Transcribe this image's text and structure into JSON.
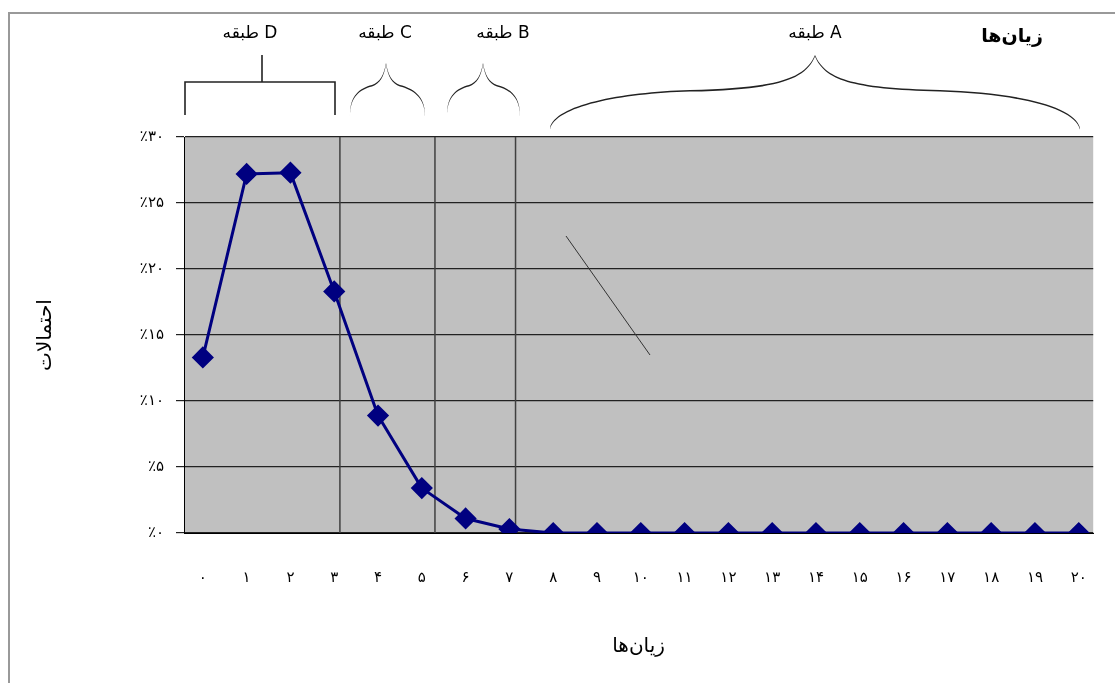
{
  "chart_data": {
    "type": "line",
    "title": "زیان‌ها",
    "xlabel": "زیان‌ها",
    "ylabel": "احتمالات",
    "annotations": [
      "طبقه D",
      "طبقه C",
      "طبقه B",
      "طبقه A"
    ],
    "x": [
      0,
      1,
      2,
      3,
      4,
      5,
      6,
      7,
      8,
      9,
      10,
      11,
      12,
      13,
      14,
      15,
      16,
      17,
      18,
      19,
      20
    ],
    "series": [
      {
        "color": "#000080",
        "values": [
          13.3,
          27.2,
          27.3,
          18.3,
          8.9,
          3.4,
          1.1,
          0.3,
          0,
          0,
          0,
          0,
          0,
          0,
          0,
          0,
          0,
          0,
          0,
          0,
          0
        ]
      }
    ],
    "xlim": [
      -0.43,
      20.33
    ],
    "xticks": [
      {
        "value": 0,
        "label": "۰"
      },
      {
        "value": 1,
        "label": "۱"
      },
      {
        "value": 2,
        "label": "۲"
      },
      {
        "value": 3,
        "label": "۳"
      },
      {
        "value": 4,
        "label": "۴"
      },
      {
        "value": 5,
        "label": "۵"
      },
      {
        "value": 6,
        "label": "۶"
      },
      {
        "value": 7,
        "label": "۷"
      },
      {
        "value": 8,
        "label": "۸"
      },
      {
        "value": 9,
        "label": "۹"
      },
      {
        "value": 10,
        "label": "۱۰"
      },
      {
        "value": 11,
        "label": "۱۱"
      },
      {
        "value": 12,
        "label": "۱۲"
      },
      {
        "value": 13,
        "label": "۱۳"
      },
      {
        "value": 14,
        "label": "۱۴"
      },
      {
        "value": 15,
        "label": "۱۵"
      },
      {
        "value": 16,
        "label": "۱۶"
      },
      {
        "value": 17,
        "label": "۱۷"
      },
      {
        "value": 18,
        "label": "۱۸"
      },
      {
        "value": 19,
        "label": "۱۹"
      },
      {
        "value": 20,
        "label": "۲۰"
      }
    ],
    "ylim": [
      0,
      30
    ],
    "yticks": [
      {
        "value": 0,
        "label": "٪۰"
      },
      {
        "value": 5,
        "label": "٪۵"
      },
      {
        "value": 10,
        "label": "٪۱۰"
      },
      {
        "value": 15,
        "label": "٪۱۵"
      },
      {
        "value": 20,
        "label": "٪۲۰"
      },
      {
        "value": 25,
        "label": "٪۲۵"
      },
      {
        "value": 30,
        "label": "٪۳۰"
      }
    ],
    "ref_lines": [
      {
        "axis": "x",
        "value": 3.13,
        "color": "#404040"
      },
      {
        "axis": "x",
        "value": 5.3,
        "color": "#404040"
      },
      {
        "axis": "x",
        "value": 7.14,
        "color": "#404040"
      }
    ],
    "grid": "y",
    "legend": false,
    "marker": "diamond",
    "line_style": "solid"
  }
}
